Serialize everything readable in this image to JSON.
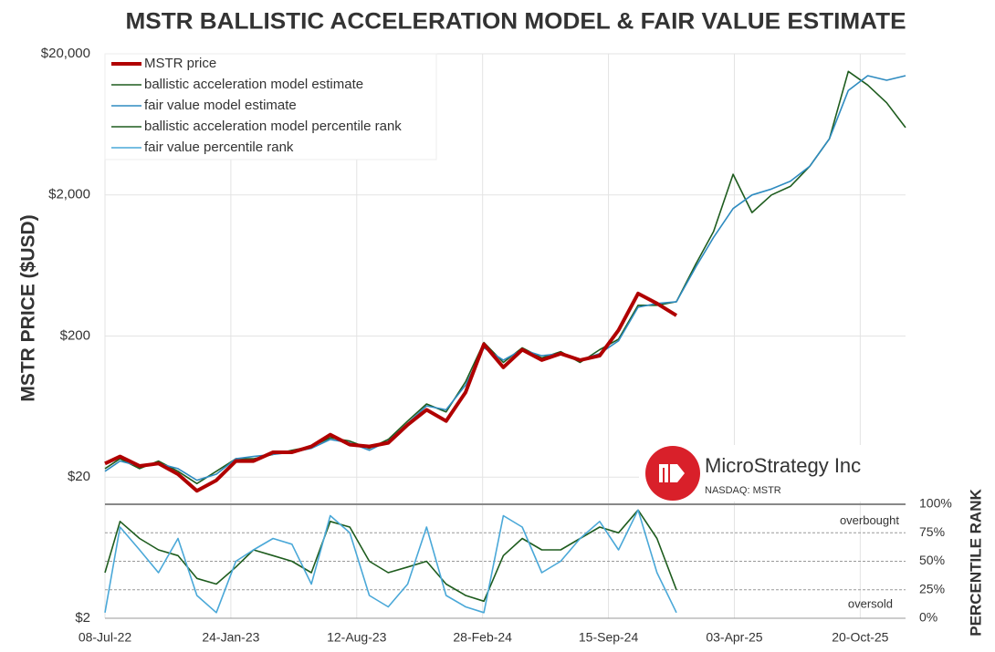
{
  "chart_data": {
    "type": "line",
    "title": "MSTR BALLISTIC ACCELERATION MODEL & FAIR VALUE ESTIMATE",
    "y_label": "MSTR PRICE ($USD)",
    "y2_label": "PERCENTILE RANK",
    "annotations": [
      "overbought",
      "oversold"
    ],
    "logo": {
      "name": "MicroStrategy Inc",
      "ticker": "NASDAQ: MSTR"
    },
    "log_scale": true,
    "grid": true,
    "legend": "top-left",
    "x": [
      "2022-07-08",
      "2022-08-01",
      "2022-09-01",
      "2022-10-01",
      "2022-11-01",
      "2022-12-01",
      "2023-01-01",
      "2023-02-01",
      "2023-03-01",
      "2023-04-01",
      "2023-05-01",
      "2023-06-01",
      "2023-07-01",
      "2023-08-01",
      "2023-09-01",
      "2023-10-01",
      "2023-11-01",
      "2023-12-01",
      "2024-01-01",
      "2024-02-01",
      "2024-03-01",
      "2024-04-01",
      "2024-05-01",
      "2024-06-01",
      "2024-07-01",
      "2024-08-01",
      "2024-09-01",
      "2024-10-01",
      "2024-11-01",
      "2024-12-01",
      "2025-01-01",
      "2025-02-01",
      "2025-03-01",
      "2025-04-01",
      "2025-05-01",
      "2025-06-01",
      "2025-07-01",
      "2025-08-01",
      "2025-09-01",
      "2025-10-01",
      "2025-11-01",
      "2025-12-01",
      "2025-12-31"
    ],
    "xlim": [
      "2022-07-08",
      "2025-12-31"
    ],
    "xticks": [
      {
        "value": "2022-07-08",
        "label": "08-Jul-22"
      },
      {
        "value": "2023-01-24",
        "label": "24-Jan-23"
      },
      {
        "value": "2023-08-12",
        "label": "12-Aug-23"
      },
      {
        "value": "2024-02-28",
        "label": "28-Feb-24"
      },
      {
        "value": "2024-09-15",
        "label": "15-Sep-24"
      },
      {
        "value": "2025-04-03",
        "label": "03-Apr-25"
      },
      {
        "value": "2025-10-20",
        "label": "20-Oct-25"
      }
    ],
    "ylim": [
      2,
      20000
    ],
    "yticks": [
      {
        "value": 2,
        "label": "$2"
      },
      {
        "value": 20,
        "label": "$20"
      },
      {
        "value": 200,
        "label": "$200"
      },
      {
        "value": 2000,
        "label": "$2,000"
      },
      {
        "value": 20000,
        "label": "$20,000"
      }
    ],
    "y2lim": [
      0,
      100
    ],
    "y2ticks": [
      {
        "value": 0,
        "label": "0%"
      },
      {
        "value": 25,
        "label": "25%"
      },
      {
        "value": 50,
        "label": "50%"
      },
      {
        "value": 75,
        "label": "75%"
      },
      {
        "value": 100,
        "label": "100%"
      }
    ],
    "series": [
      {
        "name": "MSTR price",
        "color": "#b00000",
        "width": 4,
        "values": [
          25,
          28,
          24,
          25,
          21,
          16,
          19,
          26,
          26,
          30,
          30,
          33,
          40,
          34,
          33,
          35,
          47,
          60,
          50,
          80,
          175,
          120,
          160,
          135,
          150,
          135,
          145,
          220,
          400,
          340,
          280,
          null,
          null,
          null,
          null,
          null,
          null,
          null,
          null,
          null,
          null,
          null,
          null
        ]
      },
      {
        "name": "ballistic acceleration model estimate",
        "color": "#1e5c1e",
        "width": 1.6,
        "values": [
          23,
          27,
          23,
          26,
          22,
          18,
          22,
          27,
          27,
          29,
          31,
          33,
          38,
          36,
          32,
          37,
          50,
          66,
          58,
          95,
          180,
          130,
          165,
          140,
          155,
          130,
          160,
          190,
          330,
          330,
          350,
          650,
          1100,
          2800,
          1500,
          2000,
          2300,
          3200,
          5000,
          15000,
          12000,
          9000,
          6000
        ]
      },
      {
        "name": "fair value model estimate",
        "color": "#2e8bc0",
        "width": 1.6,
        "values": [
          22,
          26,
          24,
          25,
          23,
          19,
          21,
          27,
          28,
          29,
          30,
          32,
          37,
          35,
          31,
          36,
          48,
          64,
          60,
          90,
          165,
          135,
          160,
          145,
          150,
          135,
          150,
          185,
          320,
          340,
          350,
          620,
          1000,
          1600,
          2000,
          2200,
          2500,
          3200,
          5000,
          11000,
          14000,
          13000,
          14000
        ]
      },
      {
        "name": "ballistic acceleration model percentile rank",
        "color": "#1e5c1e",
        "width": 1.6,
        "axis": "y2",
        "values": [
          40,
          85,
          70,
          60,
          55,
          35,
          30,
          45,
          60,
          55,
          50,
          40,
          85,
          80,
          50,
          40,
          45,
          50,
          30,
          20,
          15,
          55,
          70,
          60,
          60,
          70,
          80,
          75,
          95,
          70,
          25,
          null,
          null,
          null,
          null,
          null,
          null,
          null,
          null,
          null,
          null,
          null,
          null
        ]
      },
      {
        "name": "fair value percentile rank",
        "color": "#4aa8d8",
        "width": 1.6,
        "axis": "y2",
        "values": [
          5,
          80,
          60,
          40,
          70,
          20,
          5,
          50,
          60,
          70,
          65,
          30,
          90,
          75,
          20,
          10,
          30,
          80,
          20,
          10,
          5,
          90,
          80,
          40,
          50,
          70,
          85,
          60,
          95,
          40,
          5,
          null,
          null,
          null,
          null,
          null,
          null,
          null,
          null,
          null,
          null,
          null,
          null
        ]
      }
    ]
  }
}
